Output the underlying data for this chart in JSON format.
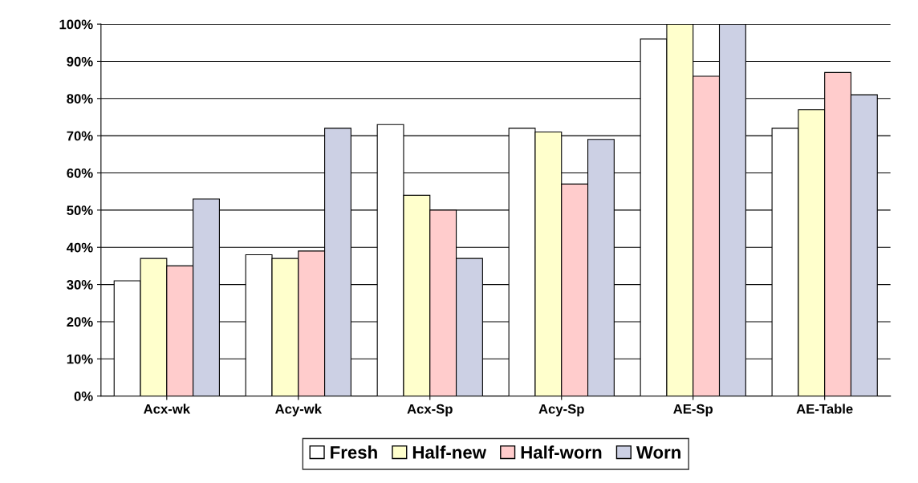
{
  "chart_data": {
    "type": "bar",
    "categories": [
      "Acx-wk",
      "Acy-wk",
      "Acx-Sp",
      "Acy-Sp",
      "AE-Sp",
      "AE-Table"
    ],
    "series": [
      {
        "name": "Fresh",
        "color": "#ffffff",
        "values": [
          31,
          38,
          73,
          72,
          96,
          72
        ]
      },
      {
        "name": "Half-new",
        "color": "#ffffcc",
        "values": [
          37,
          37,
          54,
          71,
          100,
          77
        ]
      },
      {
        "name": "Half-worn",
        "color": "#ffcccc",
        "values": [
          35,
          39,
          50,
          57,
          86,
          87
        ]
      },
      {
        "name": "Worn",
        "color": "#ccd0e4",
        "values": [
          53,
          72,
          37,
          69,
          100,
          81
        ]
      }
    ],
    "ylim": [
      0,
      100
    ],
    "yticks": [
      {
        "value": 0,
        "label": "0%"
      },
      {
        "value": 10,
        "label": "10%"
      },
      {
        "value": 20,
        "label": "20%"
      },
      {
        "value": 30,
        "label": "30%"
      },
      {
        "value": 40,
        "label": "40%"
      },
      {
        "value": 50,
        "label": "50%"
      },
      {
        "value": 60,
        "label": "60%"
      },
      {
        "value": 70,
        "label": "70%"
      },
      {
        "value": 80,
        "label": "80%"
      },
      {
        "value": 90,
        "label": "90%"
      },
      {
        "value": 100,
        "label": "100%"
      }
    ],
    "grid": "y",
    "legend": "bottom"
  }
}
